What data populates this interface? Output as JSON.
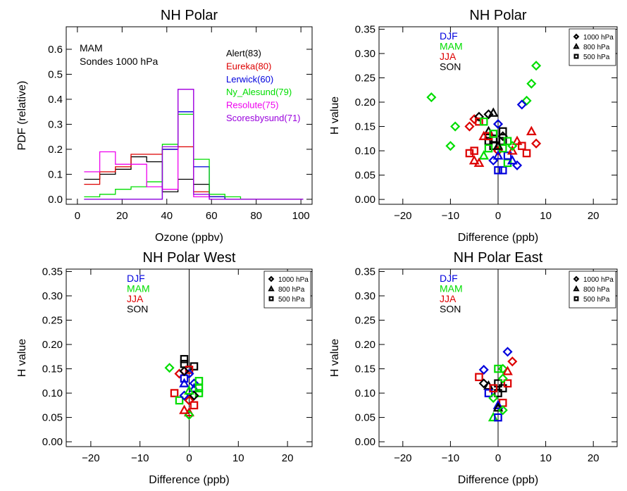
{
  "panel_style": {
    "axis_color": "#000000",
    "tick_font_size": 15
  },
  "chart_data": [
    {
      "type": "line",
      "title": "NH Polar",
      "xlabel": "Ozone (ppbv)",
      "ylabel": "PDF (relative)",
      "xlim": [
        -5,
        105
      ],
      "ylim": [
        -0.02,
        0.69
      ],
      "xticks": [
        0,
        20,
        40,
        60,
        80,
        100
      ],
      "xtick_labels": [
        "0",
        "20",
        "40",
        "60",
        "80",
        "100"
      ],
      "yticks": [
        0,
        0.1,
        0.2,
        0.3,
        0.4,
        0.5,
        0.6
      ],
      "ytick_labels": [
        "0.0",
        "0.1",
        "0.2",
        "0.3",
        "0.4",
        "0.5",
        "0.6"
      ],
      "annotations": [
        "MAM",
        "Sondes 1000 hPa"
      ],
      "legend_position": "top-right",
      "bin_edges": [
        3,
        10,
        17,
        24,
        31,
        38,
        45,
        52,
        59,
        66,
        73,
        80,
        87,
        94,
        101
      ],
      "series": [
        {
          "name": "Alert(83)",
          "color": "#000000",
          "values": [
            0.08,
            0.1,
            0.12,
            0.17,
            0.15,
            0.03,
            0.08,
            0.06,
            0.01,
            0.0,
            0.0,
            0.0,
            0.0,
            0.0
          ]
        },
        {
          "name": "Eureka(80)",
          "color": "#dd0000",
          "values": [
            0.06,
            0.11,
            0.13,
            0.18,
            0.18,
            0.2,
            0.21,
            0.03,
            0.01,
            0.0,
            0.0,
            0.0,
            0.0,
            0.0
          ]
        },
        {
          "name": "Lerwick(60)",
          "color": "#0000dd",
          "values": [
            0.0,
            0.0,
            0.0,
            0.0,
            0.0,
            0.2,
            0.35,
            0.13,
            0.01,
            0.0,
            0.0,
            0.0,
            0.0,
            0.0
          ]
        },
        {
          "name": "Ny_Alesund(79)",
          "color": "#00dd00",
          "values": [
            0.01,
            0.02,
            0.04,
            0.05,
            0.07,
            0.22,
            0.34,
            0.16,
            0.02,
            0.01,
            0.0,
            0.0,
            0.0,
            0.0
          ]
        },
        {
          "name": "Resolute(75)",
          "color": "#ee00ee",
          "values": [
            0.11,
            0.19,
            0.14,
            0.14,
            0.05,
            0.04,
            0.44,
            0.01,
            0.0,
            0.0,
            0.0,
            0.0,
            0.0,
            0.0
          ]
        },
        {
          "name": "Scoresbysund(71)",
          "color": "#9900dd",
          "values": [
            0.0,
            0.0,
            0.0,
            0.0,
            0.0,
            0.21,
            0.44,
            0.02,
            0.0,
            0.0,
            0.0,
            0.0,
            0.0,
            0.0
          ]
        }
      ]
    },
    {
      "type": "scatter",
      "title": "NH Polar",
      "xlabel": "Difference (ppb)",
      "ylabel": "H value",
      "xlim": [
        -25,
        25
      ],
      "ylim": [
        -0.01,
        0.355
      ],
      "xticks": [
        -20,
        -10,
        0,
        10,
        20
      ],
      "xtick_labels": [
        "−20",
        "−10",
        "0",
        "10",
        "20"
      ],
      "yticks": [
        0,
        0.05,
        0.1,
        0.15,
        0.2,
        0.25,
        0.3,
        0.35
      ],
      "ytick_labels": [
        "0.00",
        "0.05",
        "0.10",
        "0.15",
        "0.20",
        "0.25",
        "0.30",
        "0.35"
      ],
      "zero_line": true,
      "season_legend": [
        {
          "name": "DJF",
          "color": "#0000dd"
        },
        {
          "name": "MAM",
          "color": "#00dd00"
        },
        {
          "name": "JJA",
          "color": "#dd0000"
        },
        {
          "name": "SON",
          "color": "#000000"
        }
      ],
      "marker_legend": [
        {
          "name": "1000 hPa",
          "marker": "diamond"
        },
        {
          "name": "800 hPa",
          "marker": "triangle"
        },
        {
          "name": "500 hPa",
          "marker": "square"
        }
      ],
      "points": [
        [
          -14,
          0.21,
          "MAM",
          "diamond"
        ],
        [
          8,
          0.275,
          "MAM",
          "diamond"
        ],
        [
          7,
          0.238,
          "MAM",
          "diamond"
        ],
        [
          6,
          0.203,
          "MAM",
          "diamond"
        ],
        [
          5,
          0.195,
          "DJF",
          "diamond"
        ],
        [
          -9,
          0.15,
          "MAM",
          "diamond"
        ],
        [
          -10,
          0.11,
          "MAM",
          "diamond"
        ],
        [
          -6,
          0.15,
          "JJA",
          "diamond"
        ],
        [
          -5,
          0.165,
          "JJA",
          "diamond"
        ],
        [
          -4,
          0.17,
          "SON",
          "diamond"
        ],
        [
          -2,
          0.175,
          "SON",
          "diamond"
        ],
        [
          -1,
          0.178,
          "SON",
          "triangle"
        ],
        [
          0,
          0.155,
          "DJF",
          "diamond"
        ],
        [
          -3,
          0.13,
          "JJA",
          "triangle"
        ],
        [
          -2,
          0.14,
          "SON",
          "triangle"
        ],
        [
          1,
          0.14,
          "SON",
          "square"
        ],
        [
          -1,
          0.125,
          "SON",
          "square"
        ],
        [
          -1,
          0.11,
          "SON",
          "square"
        ],
        [
          1,
          0.12,
          "SON",
          "square"
        ],
        [
          1,
          0.13,
          "SON",
          "diamond"
        ],
        [
          -2,
          0.12,
          "SON",
          "square"
        ],
        [
          -3,
          0.09,
          "MAM",
          "triangle"
        ],
        [
          -4,
          0.075,
          "JJA",
          "triangle"
        ],
        [
          -5,
          0.08,
          "JJA",
          "triangle"
        ],
        [
          -6,
          0.095,
          "JJA",
          "square"
        ],
        [
          -4,
          0.16,
          "JJA",
          "square"
        ],
        [
          -3,
          0.16,
          "MAM",
          "square"
        ],
        [
          -5,
          0.1,
          "JJA",
          "square"
        ],
        [
          -2,
          0.105,
          "MAM",
          "square"
        ],
        [
          0,
          0.1,
          "JJA",
          "diamond"
        ],
        [
          0,
          0.06,
          "DJF",
          "square"
        ],
        [
          1,
          0.06,
          "DJF",
          "square"
        ],
        [
          2,
          0.075,
          "MAM",
          "square"
        ],
        [
          2,
          0.09,
          "DJF",
          "square"
        ],
        [
          3,
          0.08,
          "DJF",
          "triangle"
        ],
        [
          3,
          0.1,
          "JJA",
          "triangle"
        ],
        [
          4,
          0.12,
          "JJA",
          "triangle"
        ],
        [
          5,
          0.11,
          "JJA",
          "square"
        ],
        [
          6,
          0.095,
          "JJA",
          "square"
        ],
        [
          7,
          0.14,
          "JJA",
          "triangle"
        ],
        [
          8,
          0.115,
          "JJA",
          "diamond"
        ],
        [
          4,
          0.07,
          "DJF",
          "diamond"
        ],
        [
          -1,
          0.08,
          "DJF",
          "diamond"
        ],
        [
          0,
          0.09,
          "DJF",
          "triangle"
        ],
        [
          2,
          0.12,
          "MAM",
          "square"
        ],
        [
          1,
          0.105,
          "MAM",
          "square"
        ],
        [
          3,
          0.11,
          "MAM",
          "diamond"
        ],
        [
          -2,
          0.13,
          "JJA",
          "square"
        ],
        [
          -1,
          0.135,
          "MAM",
          "square"
        ],
        [
          0,
          0.11,
          "SON",
          "triangle"
        ]
      ]
    },
    {
      "type": "scatter",
      "title": "NH Polar West",
      "xlabel": "Difference (ppb)",
      "ylabel": "H value",
      "xlim": [
        -25,
        25
      ],
      "ylim": [
        -0.01,
        0.355
      ],
      "xticks": [
        -20,
        -10,
        0,
        10,
        20
      ],
      "xtick_labels": [
        "−20",
        "−10",
        "0",
        "10",
        "20"
      ],
      "yticks": [
        0,
        0.05,
        0.1,
        0.15,
        0.2,
        0.25,
        0.3,
        0.35
      ],
      "ytick_labels": [
        "0.00",
        "0.05",
        "0.10",
        "0.15",
        "0.20",
        "0.25",
        "0.30",
        "0.35"
      ],
      "zero_line": true,
      "season_legend": [
        {
          "name": "DJF",
          "color": "#0000dd"
        },
        {
          "name": "MAM",
          "color": "#00dd00"
        },
        {
          "name": "JJA",
          "color": "#dd0000"
        },
        {
          "name": "SON",
          "color": "#000000"
        }
      ],
      "marker_legend": [
        {
          "name": "1000 hPa",
          "marker": "diamond"
        },
        {
          "name": "800 hPa",
          "marker": "triangle"
        },
        {
          "name": "500 hPa",
          "marker": "square"
        }
      ],
      "points": [
        [
          -4,
          0.152,
          "MAM",
          "diamond"
        ],
        [
          -2,
          0.14,
          "JJA",
          "diamond"
        ],
        [
          -1,
          0.17,
          "SON",
          "square"
        ],
        [
          -1,
          0.16,
          "SON",
          "square"
        ],
        [
          1,
          0.155,
          "SON",
          "square"
        ],
        [
          0,
          0.148,
          "JJA",
          "square"
        ],
        [
          -1,
          0.13,
          "DJF",
          "square"
        ],
        [
          -1,
          0.12,
          "DJF",
          "triangle"
        ],
        [
          0,
          0.14,
          "DJF",
          "diamond"
        ],
        [
          1,
          0.12,
          "DJF",
          "diamond"
        ],
        [
          1,
          0.11,
          "DJF",
          "triangle"
        ],
        [
          2,
          0.125,
          "MAM",
          "square"
        ],
        [
          2,
          0.11,
          "MAM",
          "square"
        ],
        [
          2,
          0.1,
          "MAM",
          "square"
        ],
        [
          -3,
          0.1,
          "JJA",
          "square"
        ],
        [
          -2,
          0.085,
          "MAM",
          "square"
        ],
        [
          -1,
          0.095,
          "DJF",
          "diamond"
        ],
        [
          0,
          0.085,
          "JJA",
          "diamond"
        ],
        [
          1,
          0.075,
          "JJA",
          "square"
        ],
        [
          0,
          0.06,
          "JJA",
          "triangle"
        ],
        [
          0,
          0.055,
          "MAM",
          "diamond"
        ],
        [
          -1,
          0.065,
          "JJA",
          "triangle"
        ],
        [
          1,
          0.095,
          "SON",
          "diamond"
        ],
        [
          0,
          0.105,
          "MAM",
          "triangle"
        ],
        [
          -1,
          0.145,
          "SON",
          "diamond"
        ]
      ]
    },
    {
      "type": "scatter",
      "title": "NH Polar East",
      "xlabel": "Difference (ppb)",
      "ylabel": "H value",
      "xlim": [
        -25,
        25
      ],
      "ylim": [
        -0.01,
        0.355
      ],
      "xticks": [
        -20,
        -10,
        0,
        10,
        20
      ],
      "xtick_labels": [
        "−20",
        "−10",
        "0",
        "10",
        "20"
      ],
      "yticks": [
        0,
        0.05,
        0.1,
        0.15,
        0.2,
        0.25,
        0.3,
        0.35
      ],
      "ytick_labels": [
        "0.00",
        "0.05",
        "0.10",
        "0.15",
        "0.20",
        "0.25",
        "0.30",
        "0.35"
      ],
      "zero_line": true,
      "season_legend": [
        {
          "name": "DJF",
          "color": "#0000dd"
        },
        {
          "name": "MAM",
          "color": "#00dd00"
        },
        {
          "name": "JJA",
          "color": "#dd0000"
        },
        {
          "name": "SON",
          "color": "#000000"
        }
      ],
      "marker_legend": [
        {
          "name": "1000 hPa",
          "marker": "diamond"
        },
        {
          "name": "800 hPa",
          "marker": "triangle"
        },
        {
          "name": "500 hPa",
          "marker": "square"
        }
      ],
      "points": [
        [
          2,
          0.185,
          "DJF",
          "diamond"
        ],
        [
          3,
          0.165,
          "JJA",
          "diamond"
        ],
        [
          -3,
          0.148,
          "DJF",
          "diamond"
        ],
        [
          0,
          0.15,
          "MAM",
          "square"
        ],
        [
          1,
          0.15,
          "MAM",
          "diamond"
        ],
        [
          -4,
          0.133,
          "JJA",
          "square"
        ],
        [
          2,
          0.145,
          "JJA",
          "triangle"
        ],
        [
          -3,
          0.12,
          "SON",
          "diamond"
        ],
        [
          -2,
          0.115,
          "SON",
          "triangle"
        ],
        [
          0,
          0.12,
          "SON",
          "square"
        ],
        [
          1,
          0.11,
          "SON",
          "square"
        ],
        [
          -2,
          0.1,
          "DJF",
          "square"
        ],
        [
          0,
          0.1,
          "SON",
          "square"
        ],
        [
          2,
          0.12,
          "JJA",
          "square"
        ],
        [
          -1,
          0.11,
          "JJA",
          "square"
        ],
        [
          1,
          0.08,
          "JJA",
          "square"
        ],
        [
          0,
          0.075,
          "DJF",
          "triangle"
        ],
        [
          0,
          0.07,
          "SON",
          "triangle"
        ],
        [
          -1,
          0.05,
          "MAM",
          "triangle"
        ],
        [
          0,
          0.05,
          "DJF",
          "square"
        ],
        [
          1,
          0.065,
          "MAM",
          "diamond"
        ],
        [
          -1,
          0.09,
          "MAM",
          "diamond"
        ],
        [
          1,
          0.13,
          "MAM",
          "diamond"
        ]
      ]
    }
  ]
}
